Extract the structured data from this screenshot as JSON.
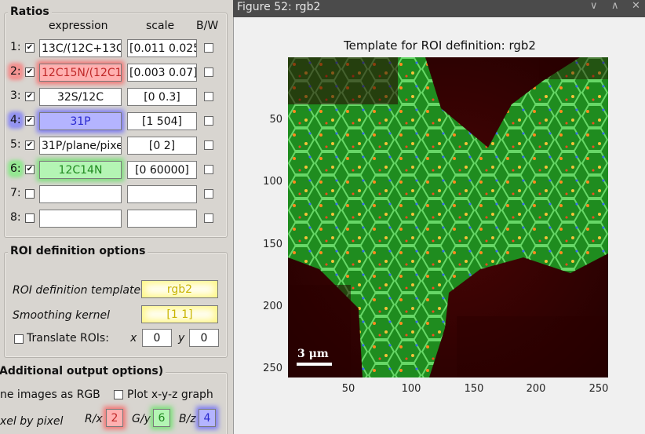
{
  "ratios": {
    "title": "Ratios",
    "col_expression": "expression",
    "col_scale": "scale",
    "col_bw": "B/W",
    "rows": [
      {
        "label": "1:",
        "checked": true,
        "expression": "13C/(12C+13C",
        "scale": "[0.011 0.025",
        "hl": ""
      },
      {
        "label": "2:",
        "checked": true,
        "expression": "12C15N/(12C1",
        "scale": "[0.003 0.07]",
        "hl": "red"
      },
      {
        "label": "3:",
        "checked": true,
        "expression": "32S/12C",
        "scale": "[0 0.3]",
        "hl": ""
      },
      {
        "label": "4:",
        "checked": true,
        "expression": "31P",
        "scale": "[1 504]",
        "hl": "blue"
      },
      {
        "label": "5:",
        "checked": true,
        "expression": "31P/plane/pixe",
        "scale": "[0 2]",
        "hl": ""
      },
      {
        "label": "6:",
        "checked": true,
        "expression": "12C14N",
        "scale": "[0 60000]",
        "hl": "green"
      },
      {
        "label": "7:",
        "checked": false,
        "expression": "",
        "scale": "",
        "hl": ""
      },
      {
        "label": "8:",
        "checked": false,
        "expression": "",
        "scale": "",
        "hl": ""
      }
    ]
  },
  "roi": {
    "title": "ROI definition options",
    "template_label": "ROI definition template",
    "template_value": "rgb2",
    "smoothing_label": "Smoothing kernel",
    "smoothing_value": "[1 1]",
    "translate_label": "Translate ROIs:",
    "x_label": "x",
    "x_value": "0",
    "y_label": "y",
    "y_value": "0"
  },
  "additional": {
    "title": "Additional output options)",
    "combine_label": "ne images as RGB",
    "plot_label": "Plot x-y-z graph",
    "pixel_label": "xel by pixel",
    "rx_label": "R/x",
    "rx_value": "2",
    "gy_label": "G/y",
    "gy_value": "6",
    "bz_label": "B/z",
    "bz_value": "4"
  },
  "figure": {
    "window_title": "Figure 52: rgb2",
    "plot_title": "Template for ROI definition: rgb2",
    "scalebar_label": "3 μm",
    "yticks": [
      "50",
      "100",
      "150",
      "200",
      "250"
    ],
    "xticks": [
      "50",
      "100",
      "150",
      "200",
      "250"
    ],
    "min_icon": "chevron-down-icon",
    "max_icon": "chevron-up-icon",
    "close_icon": "close-icon"
  }
}
